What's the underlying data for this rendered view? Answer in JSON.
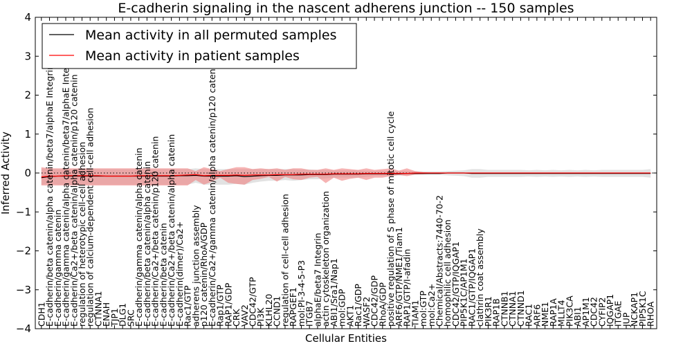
{
  "chart_data": {
    "type": "line",
    "title": "E-cadherin signaling in the nascent adherens junction -- 150 samples",
    "xlabel": "Cellular Entities",
    "ylabel": "Inferred Activity",
    "ylim": [
      -4,
      4
    ],
    "yticks": [
      -4,
      -3,
      -2,
      -1,
      0,
      1,
      2,
      3,
      4
    ],
    "grid": false,
    "legend_position": "top-left",
    "reference_line_y": 0,
    "categories": [
      "CDH1",
      "E-cadherin/beta catenin/alpha catenin/beta7/alphaE Integrin",
      "E-cadherin/gamma catenin",
      "E-cadherin/gamma catenin/alpha catenin/beta7/alphaE Integrin",
      "E-cadherin/Ca2+/beta catenin/alpha catenin/p120 catenin",
      "regulation of heterotypic cell-cell adhesion",
      "regulation of calcium-dependent cell-cell adhesion",
      "CTNNA1",
      "ENAH",
      "TJP1",
      "DLG1",
      "SRC",
      "E-cadherin/gamma catenin/alpha catenin",
      "E-cadherin/beta catenin/alpha catenin",
      "E-cadherin/Ca2+/beta catenin/p120 catenin",
      "E-cadherin/beta catenin",
      "E-cadherin/Ca2+/beta catenin/alpha catenin",
      "E-cadherin(dimer)/Ca2+",
      "Rac1/GTP",
      "adherens junction assembly",
      "p120 catenin/RhoA/GDP",
      "E-cadherin/Ca2+/gamma catenin/alpha catenin/p120 catenin",
      "Rap1/GTP",
      "RAP1/GDP",
      "CRK",
      "VAV2",
      "CDC42/GTP",
      "PI3K",
      "KLHL20",
      "CCND1",
      "regulation of cell-cell adhesion",
      "RAPGEF1",
      "mol:PI-3-4-5-P3",
      "ITGB7",
      "alphaE/beta7 Integrin",
      "actin cytoskeleton organization",
      "ABI1/Sra1/Nap1",
      "mol:GDP",
      "AKT1",
      "Rac1/GDP",
      "WASF2",
      "CDC42/GDP",
      "RhoA/GDP",
      "positive regulation of S phase of mitotic cell cycle",
      "ARF6/GTP/NME1/Tiam1",
      "RAP1/GTP/I-afadin",
      "TIAM1",
      "mol:GTP",
      "mol:Ca2+",
      "Chemical/Abstracts:7440-70-2",
      "homophilic cell adhesion",
      "CDC42/GTP/IQGAP1",
      "PIP5K1C/AP1M1",
      "RAC1/GTP/IQGAP1",
      "clathrin coat assembly",
      "PIK3R1",
      "RAP1B",
      "CTNNB1",
      "CTNNA1",
      "CTNND1",
      "RAC1",
      "ARF6",
      "NME1",
      "RAP1A",
      "MLLT4",
      "PIK3CA",
      "ABI1",
      "AP1M1",
      "CDC42",
      "CYFIP2",
      "IQGAP1",
      "ITGAE",
      "JUP",
      "NCKAP1",
      "PIP5K1C",
      "RHOA"
    ],
    "series": [
      {
        "name": "Mean activity in all permuted samples",
        "color": "#000000",
        "values": [
          -0.12,
          -0.09,
          -0.08,
          -0.08,
          -0.08,
          -0.08,
          -0.08,
          -0.08,
          -0.08,
          -0.08,
          -0.08,
          -0.08,
          -0.08,
          -0.08,
          -0.08,
          -0.08,
          -0.08,
          -0.07,
          -0.07,
          -0.06,
          -0.08,
          -0.08,
          -0.08,
          -0.08,
          -0.07,
          -0.09,
          -0.08,
          -0.07,
          -0.06,
          -0.06,
          -0.05,
          -0.05,
          -0.05,
          -0.04,
          -0.04,
          -0.04,
          -0.03,
          -0.03,
          -0.03,
          -0.03,
          -0.02,
          -0.02,
          -0.02,
          -0.02,
          -0.02,
          -0.01,
          -0.01,
          -0.01,
          -0.01,
          -0.01,
          0.0,
          0.0,
          0.0,
          -0.01,
          -0.01,
          -0.01,
          -0.01,
          -0.01,
          -0.01,
          -0.01,
          -0.01,
          -0.01,
          -0.01,
          -0.01,
          -0.01,
          -0.01,
          -0.01,
          -0.01,
          -0.01,
          -0.01,
          -0.01,
          -0.01,
          -0.01,
          -0.01,
          -0.01,
          -0.01
        ],
        "band_lower": [
          -0.3,
          -0.28,
          -0.3,
          -0.3,
          -0.3,
          -0.3,
          -0.3,
          -0.3,
          -0.3,
          -0.3,
          -0.3,
          -0.3,
          -0.3,
          -0.3,
          -0.3,
          -0.3,
          -0.3,
          -0.3,
          -0.3,
          -0.25,
          -0.3,
          -0.3,
          -0.3,
          -0.3,
          -0.28,
          -0.3,
          -0.25,
          -0.22,
          -0.2,
          -0.2,
          -0.18,
          -0.2,
          -0.18,
          -0.16,
          -0.16,
          -0.14,
          -0.12,
          -0.12,
          -0.12,
          -0.12,
          -0.1,
          -0.08,
          -0.08,
          -0.07,
          -0.07,
          -0.06,
          -0.05,
          -0.05,
          -0.05,
          -0.05,
          -0.06,
          -0.07,
          -0.08,
          -0.12,
          -0.12,
          -0.1,
          -0.1,
          -0.1,
          -0.1,
          -0.1,
          -0.09,
          -0.1,
          -0.09,
          -0.1,
          -0.09,
          -0.1,
          -0.09,
          -0.1,
          -0.09,
          -0.1,
          -0.1,
          -0.1,
          -0.1,
          -0.1,
          -0.1,
          -0.12
        ],
        "band_upper": [
          0.12,
          0.1,
          0.1,
          0.1,
          0.1,
          0.1,
          0.1,
          0.1,
          0.1,
          0.1,
          0.1,
          0.1,
          0.1,
          0.1,
          0.1,
          0.1,
          0.1,
          0.1,
          0.1,
          0.12,
          0.1,
          0.1,
          0.1,
          0.1,
          0.1,
          0.1,
          0.1,
          0.1,
          0.1,
          0.1,
          0.1,
          0.1,
          0.09,
          0.09,
          0.08,
          0.08,
          0.07,
          0.07,
          0.07,
          0.07,
          0.06,
          0.06,
          0.06,
          0.05,
          0.05,
          0.05,
          0.05,
          0.04,
          0.04,
          0.04,
          0.05,
          0.06,
          0.07,
          0.1,
          0.1,
          0.08,
          0.08,
          0.08,
          0.08,
          0.08,
          0.07,
          0.08,
          0.07,
          0.08,
          0.07,
          0.08,
          0.07,
          0.08,
          0.07,
          0.08,
          0.08,
          0.08,
          0.08,
          0.08,
          0.08,
          0.1
        ],
        "band_color": "#bfbfbf"
      },
      {
        "name": "Mean activity in patient samples",
        "color": "#ff0000",
        "values": [
          -0.1,
          -0.08,
          -0.08,
          -0.07,
          -0.07,
          -0.07,
          -0.07,
          -0.07,
          -0.08,
          -0.08,
          -0.08,
          -0.08,
          -0.07,
          -0.07,
          -0.07,
          -0.07,
          -0.07,
          -0.06,
          -0.05,
          -0.04,
          -0.07,
          -0.06,
          -0.06,
          -0.06,
          -0.05,
          -0.06,
          -0.05,
          -0.05,
          -0.05,
          -0.04,
          -0.04,
          -0.04,
          -0.03,
          -0.03,
          -0.03,
          -0.03,
          -0.02,
          -0.02,
          -0.02,
          -0.02,
          -0.01,
          -0.01,
          -0.01,
          -0.01,
          -0.01,
          -0.01,
          0.0,
          0.0,
          0.0,
          0.0,
          0.0,
          0.0,
          0.0,
          0.0,
          0.0,
          0.0,
          0.0,
          0.0,
          0.0,
          0.0,
          0.0,
          0.0,
          0.0,
          0.0,
          0.0,
          0.0,
          0.0,
          0.0,
          0.0,
          0.0,
          0.0,
          0.0,
          0.0,
          0.0,
          0.0,
          0.0
        ],
        "band_lower": [
          -0.32,
          -0.32,
          -0.32,
          -0.32,
          -0.32,
          -0.32,
          -0.32,
          -0.32,
          -0.32,
          -0.32,
          -0.32,
          -0.32,
          -0.32,
          -0.32,
          -0.32,
          -0.32,
          -0.32,
          -0.32,
          -0.32,
          -0.18,
          -0.3,
          -0.22,
          -0.12,
          -0.25,
          -0.28,
          -0.3,
          -0.18,
          -0.15,
          -0.1,
          -0.22,
          -0.1,
          -0.16,
          -0.18,
          -0.12,
          -0.1,
          -0.26,
          -0.12,
          -0.2,
          -0.15,
          -0.12,
          -0.18,
          -0.12,
          -0.12,
          -0.08,
          -0.05,
          -0.08,
          -0.04,
          -0.03,
          -0.01,
          -0.01,
          0.0,
          0.0,
          0.0,
          0.0,
          0.0,
          0.0,
          0.0,
          0.0,
          0.0,
          0.0,
          0.0,
          0.0,
          0.0,
          0.0,
          0.0,
          0.0,
          0.0,
          0.0,
          0.0,
          0.0,
          0.0,
          0.0,
          0.0,
          0.0,
          0.0,
          0.0
        ],
        "band_upper": [
          0.15,
          0.12,
          0.12,
          0.12,
          0.12,
          0.12,
          0.12,
          0.12,
          0.12,
          0.12,
          0.12,
          0.12,
          0.12,
          0.12,
          0.12,
          0.12,
          0.12,
          0.12,
          0.12,
          0.05,
          0.15,
          0.1,
          0.05,
          0.1,
          0.15,
          0.15,
          0.1,
          0.12,
          0.1,
          0.12,
          0.08,
          0.12,
          0.12,
          0.08,
          0.08,
          0.12,
          0.08,
          0.12,
          0.1,
          0.08,
          0.12,
          0.08,
          0.1,
          0.12,
          0.06,
          0.12,
          0.05,
          0.02,
          0.01,
          0.01,
          0.0,
          0.0,
          0.0,
          0.0,
          0.0,
          0.0,
          0.0,
          0.0,
          0.0,
          0.0,
          0.0,
          0.0,
          0.0,
          0.0,
          0.0,
          0.0,
          0.0,
          0.0,
          0.0,
          0.0,
          0.0,
          0.0,
          0.0,
          0.0,
          0.0,
          0.0
        ],
        "band_color": "#f08080"
      }
    ]
  }
}
